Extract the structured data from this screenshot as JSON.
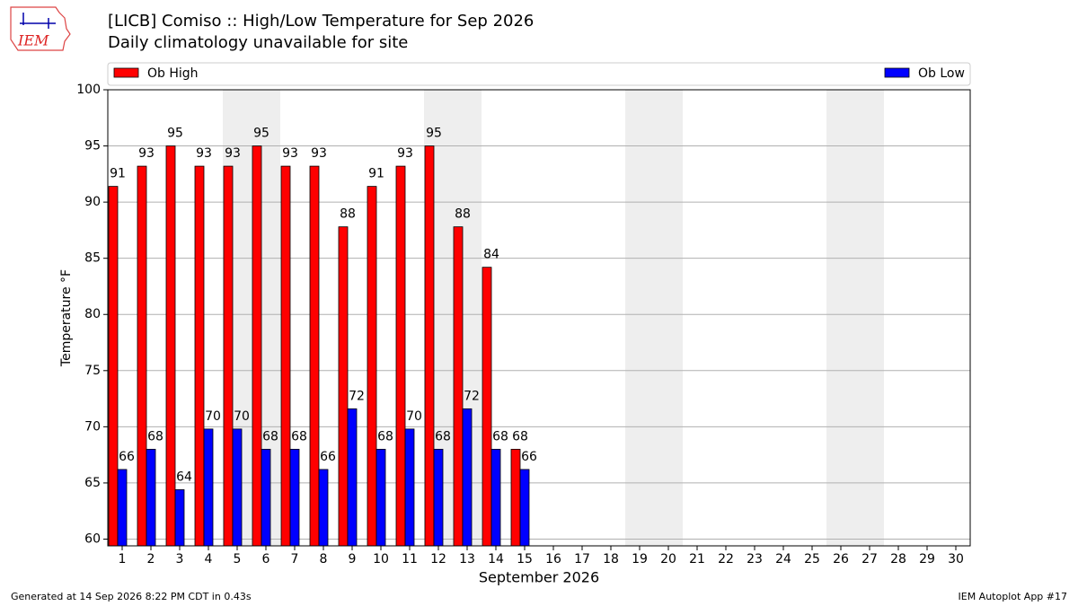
{
  "chart_data": {
    "type": "bar",
    "title": "[LICB] Comiso :: High/Low Temperature for Sep 2026",
    "subtitle": "Daily climatology unavailable for site",
    "logo": "IEM",
    "xlabel": "September 2026",
    "ylabel": "Temperature °F",
    "footer_left": "Generated at 14 Sep 2026 8:22 PM CDT in 0.43s",
    "footer_right": "IEM Autoplot App #17",
    "categories": [
      "1",
      "2",
      "3",
      "4",
      "5",
      "6",
      "7",
      "8",
      "9",
      "10",
      "11",
      "12",
      "13",
      "14",
      "15",
      "16",
      "17",
      "18",
      "19",
      "20",
      "21",
      "22",
      "23",
      "24",
      "25",
      "26",
      "27",
      "28",
      "29",
      "30"
    ],
    "series": [
      {
        "name": "Ob High",
        "color": "#ff0000",
        "values": [
          91.4,
          93.2,
          95,
          93.2,
          93.2,
          95,
          93.2,
          93.2,
          87.8,
          91.4,
          93.2,
          95,
          87.8,
          84.2,
          68,
          null,
          null,
          null,
          null,
          null,
          null,
          null,
          null,
          null,
          null,
          null,
          null,
          null,
          null,
          null
        ],
        "value_labels": [
          "91",
          "93",
          "95",
          "93",
          "93",
          "95",
          "93",
          "93",
          "88",
          "91",
          "93",
          "95",
          "88",
          "84",
          "68",
          null,
          null,
          null,
          null,
          null,
          null,
          null,
          null,
          null,
          null,
          null,
          null,
          null,
          null,
          null
        ]
      },
      {
        "name": "Ob Low",
        "color": "#0000ff",
        "values": [
          66.2,
          68,
          64.4,
          69.8,
          69.8,
          68,
          68,
          66.2,
          71.6,
          68,
          69.8,
          68,
          71.6,
          68,
          66.2,
          null,
          null,
          null,
          null,
          null,
          null,
          null,
          null,
          null,
          null,
          null,
          null,
          null,
          null,
          null
        ],
        "value_labels": [
          "66",
          "68",
          "64",
          "70",
          "70",
          "68",
          "68",
          "66",
          "72",
          "68",
          "70",
          "68",
          "72",
          "68",
          "66",
          null,
          null,
          null,
          null,
          null,
          null,
          null,
          null,
          null,
          null,
          null,
          null,
          null,
          null,
          null
        ]
      }
    ],
    "shaded_ranges": [
      [
        5,
        6
      ],
      [
        12,
        13
      ],
      [
        19,
        20
      ],
      [
        26,
        27
      ]
    ],
    "ylim": [
      59.4,
      100
    ],
    "yticks": [
      60,
      65,
      70,
      75,
      80,
      85,
      90,
      95,
      100
    ],
    "grid": true,
    "legend": "top"
  }
}
